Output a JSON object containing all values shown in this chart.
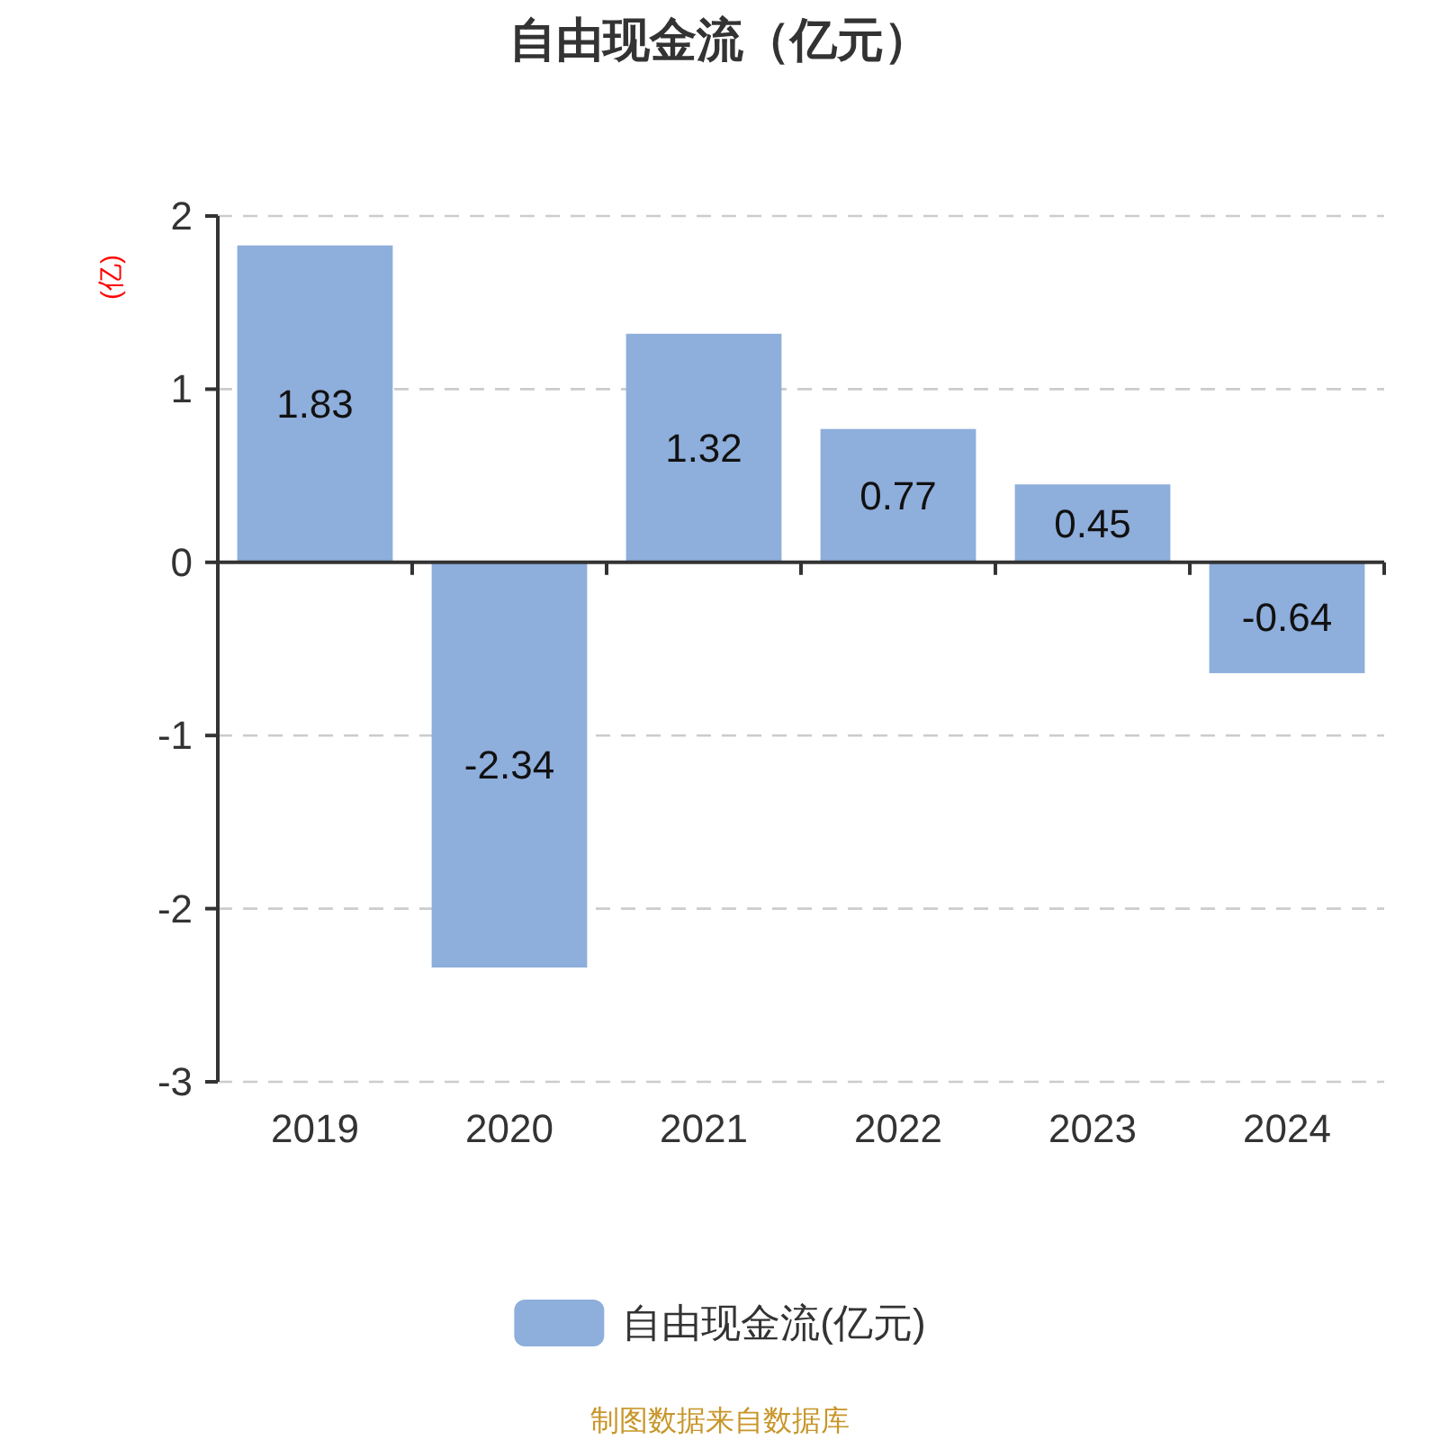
{
  "chart_data": {
    "type": "bar",
    "title": "自由现金流（亿元）",
    "ylabel": "(亿)",
    "categories": [
      "2019",
      "2020",
      "2021",
      "2022",
      "2023",
      "2024"
    ],
    "series": [
      {
        "name": "自由现金流(亿元)",
        "color": "#8eaedb",
        "values": [
          1.83,
          -2.34,
          1.32,
          0.77,
          0.45,
          -0.64
        ]
      }
    ],
    "ylim": [
      -3,
      2
    ],
    "yticks": [
      -3,
      -2,
      -1,
      0,
      1,
      2
    ],
    "grid": "y",
    "legend": "bottom",
    "data_labels": true,
    "annotations": [
      "制图数据来自数据库"
    ]
  }
}
